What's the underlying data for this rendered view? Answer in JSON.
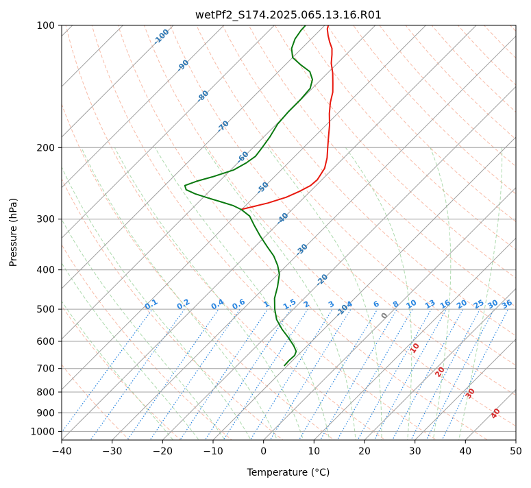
{
  "chart_data": {
    "type": "line",
    "subtype": "skew-T log-P diagram",
    "title": "wetPf2_S174.2025.065.13.16.R01",
    "xlabel": "Temperature (°C)",
    "ylabel": "Pressure (hPa)",
    "xlim": [
      -40,
      50
    ],
    "ylim": [
      1050,
      100
    ],
    "y_scale": "log",
    "skew": true,
    "grid": true,
    "x_ticks": [
      -40,
      -30,
      -20,
      -10,
      0,
      10,
      20,
      30,
      40,
      50
    ],
    "y_ticks": [
      100,
      200,
      300,
      400,
      500,
      600,
      700,
      800,
      900,
      1000
    ],
    "colors": {
      "temperature": "#e8190f",
      "dewpoint": "#0a7a10",
      "isobar": "#a0a0a0",
      "isotherm": "#a0a0a0",
      "dry_adiabat": "#f6a48a",
      "moist_adiabat": "#9fd49f",
      "mixing_ratio": "#2a86e0",
      "isotherm_label": "#2f78b4",
      "mixing_ratio_label": "#2a86e0",
      "adiabat_label": "#d62a2a"
    },
    "isotherm_labels": [
      -100,
      -90,
      -80,
      -70,
      -60,
      -50,
      -40,
      -30,
      -20,
      -10
    ],
    "mixing_ratio_labels": [
      "0.1",
      "0.2",
      "0.4",
      "0.6",
      "1",
      "1.5",
      "2",
      "3",
      "4",
      "6",
      "8",
      "10",
      "13",
      "16",
      "20",
      "25",
      "30",
      "36"
    ],
    "adiabat_labels": [
      "0",
      "10",
      "20",
      "30",
      "40"
    ],
    "series": [
      {
        "key": "temperature",
        "points": [
          {
            "p": 284,
            "t": -50.1
          },
          {
            "p": 279,
            "t": -48.1
          },
          {
            "p": 274,
            "t": -46.1
          },
          {
            "p": 265,
            "t": -43.6
          },
          {
            "p": 256,
            "t": -42.1
          },
          {
            "p": 248,
            "t": -41.1
          },
          {
            "p": 240,
            "t": -40.9
          },
          {
            "p": 225,
            "t": -41.7
          },
          {
            "p": 212,
            "t": -43.3
          },
          {
            "p": 200,
            "t": -45.2
          },
          {
            "p": 188,
            "t": -47.2
          },
          {
            "p": 176,
            "t": -49.3
          },
          {
            "p": 165,
            "t": -51.6
          },
          {
            "p": 155,
            "t": -53.6
          },
          {
            "p": 146,
            "t": -55.2
          },
          {
            "p": 139,
            "t": -56.9
          },
          {
            "p": 131,
            "t": -59.0
          },
          {
            "p": 124,
            "t": -61.2
          },
          {
            "p": 118,
            "t": -62.8
          },
          {
            "p": 114,
            "t": -64.0
          },
          {
            "p": 110,
            "t": -65.7
          },
          {
            "p": 106,
            "t": -67.3
          },
          {
            "p": 102,
            "t": -68.8
          },
          {
            "p": 100,
            "t": -69.3
          }
        ]
      },
      {
        "key": "dewpoint",
        "points": [
          {
            "p": 690,
            "t": -10.6
          },
          {
            "p": 670,
            "t": -10.7
          },
          {
            "p": 650,
            "t": -10.6
          },
          {
            "p": 635,
            "t": -11.1
          },
          {
            "p": 615,
            "t": -12.7
          },
          {
            "p": 590,
            "t": -15.1
          },
          {
            "p": 560,
            "t": -18.3
          },
          {
            "p": 530,
            "t": -21.3
          },
          {
            "p": 500,
            "t": -23.7
          },
          {
            "p": 470,
            "t": -25.9
          },
          {
            "p": 440,
            "t": -27.6
          },
          {
            "p": 410,
            "t": -29.7
          },
          {
            "p": 390,
            "t": -31.8
          },
          {
            "p": 370,
            "t": -34.4
          },
          {
            "p": 350,
            "t": -37.7
          },
          {
            "p": 330,
            "t": -41.1
          },
          {
            "p": 310,
            "t": -44.5
          },
          {
            "p": 295,
            "t": -47.1
          },
          {
            "p": 284,
            "t": -50.1
          },
          {
            "p": 278,
            "t": -52.4
          },
          {
            "p": 272,
            "t": -55.6
          },
          {
            "p": 266,
            "t": -59.0
          },
          {
            "p": 260,
            "t": -62.3
          },
          {
            "p": 254,
            "t": -64.9
          },
          {
            "p": 248,
            "t": -66.0
          },
          {
            "p": 242,
            "t": -64.5
          },
          {
            "p": 236,
            "t": -62.2
          },
          {
            "p": 227,
            "t": -59.4
          },
          {
            "p": 218,
            "t": -58.3
          },
          {
            "p": 210,
            "t": -57.8
          },
          {
            "p": 200,
            "t": -58.2
          },
          {
            "p": 188,
            "t": -58.8
          },
          {
            "p": 175,
            "t": -59.8
          },
          {
            "p": 163,
            "t": -60.1
          },
          {
            "p": 152,
            "t": -60.1
          },
          {
            "p": 143,
            "t": -60.4
          },
          {
            "p": 136,
            "t": -61.7
          },
          {
            "p": 130,
            "t": -63.8
          },
          {
            "p": 125,
            "t": -67.0
          },
          {
            "p": 120,
            "t": -70.0
          },
          {
            "p": 114,
            "t": -72.0
          },
          {
            "p": 108,
            "t": -73.2
          },
          {
            "p": 103,
            "t": -73.7
          },
          {
            "p": 100,
            "t": -73.8
          }
        ]
      }
    ]
  }
}
